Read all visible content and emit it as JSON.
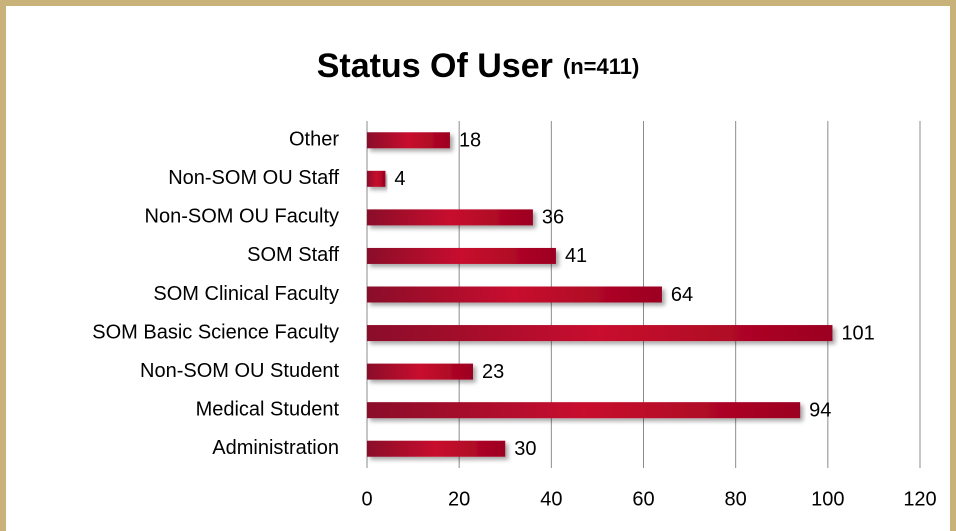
{
  "chart_data": {
    "type": "bar",
    "orientation": "horizontal",
    "title": "Status Of User",
    "subtitle": "(n=411)",
    "categories": [
      "Other",
      "Non-SOM OU Staff",
      "Non-SOM OU Faculty",
      "SOM Staff",
      "SOM Clinical Faculty",
      "SOM Basic Science Faculty",
      "Non-SOM OU Student",
      "Medical Student",
      "Administration"
    ],
    "values": [
      18,
      4,
      36,
      41,
      64,
      101,
      23,
      94,
      30
    ],
    "color": "#b5002a",
    "xlim": [
      0,
      120
    ],
    "xticks": [
      0,
      20,
      40,
      60,
      80,
      100,
      120
    ],
    "grid": true
  }
}
